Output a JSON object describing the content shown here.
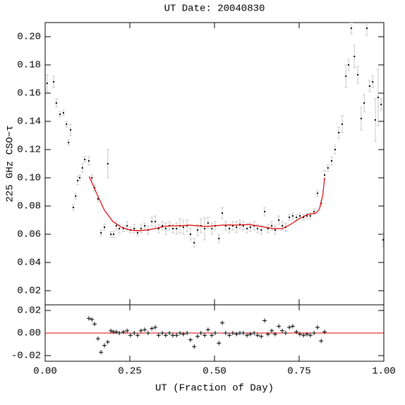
{
  "chart_data": [
    {
      "type": "scatter",
      "title": "UT Date: 20040830",
      "ylabel": "225 GHz CSO−τ",
      "xlim": [
        0,
        1
      ],
      "ylim": [
        0.01,
        0.21
      ],
      "yticks": [
        {
          "value": 0.02,
          "label": "0.02"
        },
        {
          "value": 0.04,
          "label": "0.04"
        },
        {
          "value": 0.06,
          "label": "0.06"
        },
        {
          "value": 0.08,
          "label": "0.08"
        },
        {
          "value": 0.1,
          "label": "0.10"
        },
        {
          "value": 0.12,
          "label": "0.12"
        },
        {
          "value": 0.14,
          "label": "0.14"
        },
        {
          "value": 0.16,
          "label": "0.16"
        },
        {
          "value": 0.18,
          "label": "0.18"
        },
        {
          "value": 0.2,
          "label": "0.20"
        }
      ],
      "series": [
        {
          "marker": "dot",
          "color": "#000000",
          "error_color": "#c8c8c8",
          "x": [
            0.006,
            0.025,
            0.033,
            0.044,
            0.054,
            0.063,
            0.069,
            0.075,
            0.083,
            0.09,
            0.096,
            0.102,
            0.11,
            0.117,
            0.129,
            0.138,
            0.146,
            0.156,
            0.165,
            0.175,
            0.185,
            0.194,
            0.202,
            0.21,
            0.219,
            0.231,
            0.242,
            0.252,
            0.263,
            0.273,
            0.283,
            0.294,
            0.304,
            0.315,
            0.325,
            0.335,
            0.346,
            0.356,
            0.367,
            0.377,
            0.388,
            0.398,
            0.408,
            0.419,
            0.429,
            0.44,
            0.45,
            0.46,
            0.471,
            0.481,
            0.492,
            0.502,
            0.513,
            0.523,
            0.533,
            0.544,
            0.554,
            0.565,
            0.575,
            0.585,
            0.596,
            0.606,
            0.617,
            0.627,
            0.638,
            0.648,
            0.658,
            0.669,
            0.679,
            0.69,
            0.7,
            0.71,
            0.721,
            0.731,
            0.742,
            0.752,
            0.763,
            0.773,
            0.783,
            0.794,
            0.804,
            0.815,
            0.825,
            0.835,
            0.846,
            0.856,
            0.867,
            0.877,
            0.888,
            0.896,
            0.904,
            0.913,
            0.923,
            0.933,
            0.942,
            0.95,
            0.958,
            0.967,
            0.975,
            0.983,
            0.992,
            0.998
          ],
          "values": [
            0.167,
            0.168,
            0.153,
            0.145,
            0.146,
            0.138,
            0.125,
            0.134,
            0.079,
            0.087,
            0.098,
            0.1,
            0.107,
            0.113,
            0.112,
            0.1,
            0.093,
            0.085,
            0.061,
            0.065,
            0.11,
            0.06,
            0.06,
            0.066,
            0.064,
            0.064,
            0.066,
            0.063,
            0.064,
            0.061,
            0.064,
            0.066,
            0.063,
            0.069,
            0.069,
            0.064,
            0.066,
            0.064,
            0.066,
            0.064,
            0.064,
            0.066,
            0.065,
            0.066,
            0.06,
            0.054,
            0.063,
            0.066,
            0.064,
            0.068,
            0.064,
            0.066,
            0.057,
            0.075,
            0.066,
            0.064,
            0.066,
            0.065,
            0.067,
            0.066,
            0.064,
            0.065,
            0.066,
            0.064,
            0.063,
            0.076,
            0.064,
            0.066,
            0.063,
            0.07,
            0.066,
            0.065,
            0.072,
            0.073,
            0.072,
            0.073,
            0.072,
            0.073,
            0.073,
            0.076,
            0.089,
            0.082,
            0.102,
            0.107,
            0.112,
            0.12,
            0.132,
            0.138,
            0.172,
            0.18,
            0.206,
            0.186,
            0.173,
            0.142,
            0.153,
            0.206,
            0.165,
            0.168,
            0.141,
            0.157,
            0.152,
            0.056
          ],
          "errors": [
            0.006,
            0.004,
            0.003,
            0.002,
            0.002,
            0.002,
            0.002,
            0.004,
            0.002,
            0.002,
            0.003,
            0.002,
            0.003,
            0.002,
            0.003,
            0.002,
            0.002,
            0.002,
            0.002,
            0.002,
            0.01,
            0.002,
            0.002,
            0.003,
            0.003,
            0.002,
            0.003,
            0.002,
            0.003,
            0.002,
            0.003,
            0.002,
            0.003,
            0.003,
            0.004,
            0.003,
            0.003,
            0.004,
            0.003,
            0.003,
            0.004,
            0.005,
            0.005,
            0.004,
            0.004,
            0.003,
            0.004,
            0.005,
            0.008,
            0.004,
            0.004,
            0.003,
            0.003,
            0.004,
            0.003,
            0.003,
            0.003,
            0.004,
            0.003,
            0.003,
            0.003,
            0.003,
            0.003,
            0.003,
            0.003,
            0.003,
            0.003,
            0.003,
            0.003,
            0.003,
            0.003,
            0.003,
            0.002,
            0.002,
            0.002,
            0.002,
            0.002,
            0.002,
            0.002,
            0.002,
            0.002,
            0.002,
            0.003,
            0.002,
            0.003,
            0.003,
            0.004,
            0.006,
            0.008,
            0.004,
            0.004,
            0.008,
            0.006,
            0.008,
            0.006,
            0.005,
            0.004,
            0.004,
            0.015,
            0.02,
            0.004,
            0.006
          ]
        },
        {
          "marker": "line",
          "color": "#e00000",
          "x": [
            0.13,
            0.15,
            0.175,
            0.2,
            0.225,
            0.25,
            0.275,
            0.3,
            0.325,
            0.35,
            0.375,
            0.4,
            0.425,
            0.45,
            0.475,
            0.5,
            0.525,
            0.55,
            0.575,
            0.6,
            0.625,
            0.65,
            0.675,
            0.7,
            0.725,
            0.75,
            0.775,
            0.8,
            0.81,
            0.82,
            0.825
          ],
          "values": [
            0.101,
            0.09,
            0.077,
            0.069,
            0.065,
            0.063,
            0.0625,
            0.063,
            0.064,
            0.0655,
            0.066,
            0.066,
            0.0665,
            0.066,
            0.0655,
            0.066,
            0.0665,
            0.0665,
            0.0665,
            0.067,
            0.066,
            0.065,
            0.064,
            0.064,
            0.067,
            0.071,
            0.074,
            0.075,
            0.078,
            0.088,
            0.1
          ]
        }
      ]
    },
    {
      "type": "scatter",
      "xlabel": "UT (Fraction of Day)",
      "xlim": [
        0,
        1
      ],
      "ylim": [
        -0.025,
        0.025
      ],
      "xticks": [
        {
          "value": 0,
          "label": "0.00"
        },
        {
          "value": 0.25,
          "label": "0.25"
        },
        {
          "value": 0.5,
          "label": "0.50"
        },
        {
          "value": 0.75,
          "label": "0.75"
        },
        {
          "value": 1,
          "label": "1.00"
        }
      ],
      "yticks": [
        {
          "value": -0.02,
          "label": "-0.02"
        },
        {
          "value": 0,
          "label": "0.00"
        },
        {
          "value": 0.02,
          "label": "0.02"
        }
      ],
      "reference_line": {
        "value": 0,
        "color": "#e00000"
      },
      "series": [
        {
          "marker": "plus",
          "color": "#000000",
          "x": [
            0.129,
            0.138,
            0.146,
            0.156,
            0.165,
            0.175,
            0.185,
            0.194,
            0.202,
            0.21,
            0.219,
            0.231,
            0.242,
            0.252,
            0.263,
            0.273,
            0.283,
            0.294,
            0.304,
            0.315,
            0.325,
            0.335,
            0.346,
            0.356,
            0.367,
            0.377,
            0.388,
            0.398,
            0.408,
            0.419,
            0.429,
            0.44,
            0.45,
            0.46,
            0.471,
            0.481,
            0.492,
            0.502,
            0.513,
            0.523,
            0.533,
            0.544,
            0.554,
            0.565,
            0.575,
            0.585,
            0.596,
            0.606,
            0.617,
            0.627,
            0.638,
            0.648,
            0.658,
            0.669,
            0.679,
            0.69,
            0.7,
            0.71,
            0.721,
            0.731,
            0.742,
            0.752,
            0.763,
            0.773,
            0.783,
            0.794,
            0.804,
            0.815,
            0.825
          ],
          "values": [
            0.013,
            0.012,
            0.008,
            -0.005,
            -0.017,
            -0.011,
            -0.008,
            0.002,
            0.001,
            0.001,
            0,
            0.001,
            0.002,
            -0.002,
            0,
            -0.002,
            0.002,
            0.003,
            0,
            0.004,
            0.005,
            -0.002,
            0,
            -0.002,
            0,
            -0.002,
            -0.002,
            0,
            -0.001,
            0,
            -0.006,
            -0.012,
            -0.003,
            0,
            -0.002,
            0.003,
            -0.002,
            0,
            -0.009,
            0.009,
            0,
            -0.002,
            0,
            -0.001,
            0,
            0,
            -0.002,
            -0.001,
            0,
            -0.002,
            -0.003,
            0.011,
            -0.001,
            0.002,
            -0.001,
            0.006,
            0.002,
            0,
            0.005,
            0.006,
            0.001,
            -0.001,
            -0.002,
            -0.001,
            -0.002,
            0,
            0.005,
            -0.007,
            0.001
          ]
        }
      ]
    }
  ]
}
